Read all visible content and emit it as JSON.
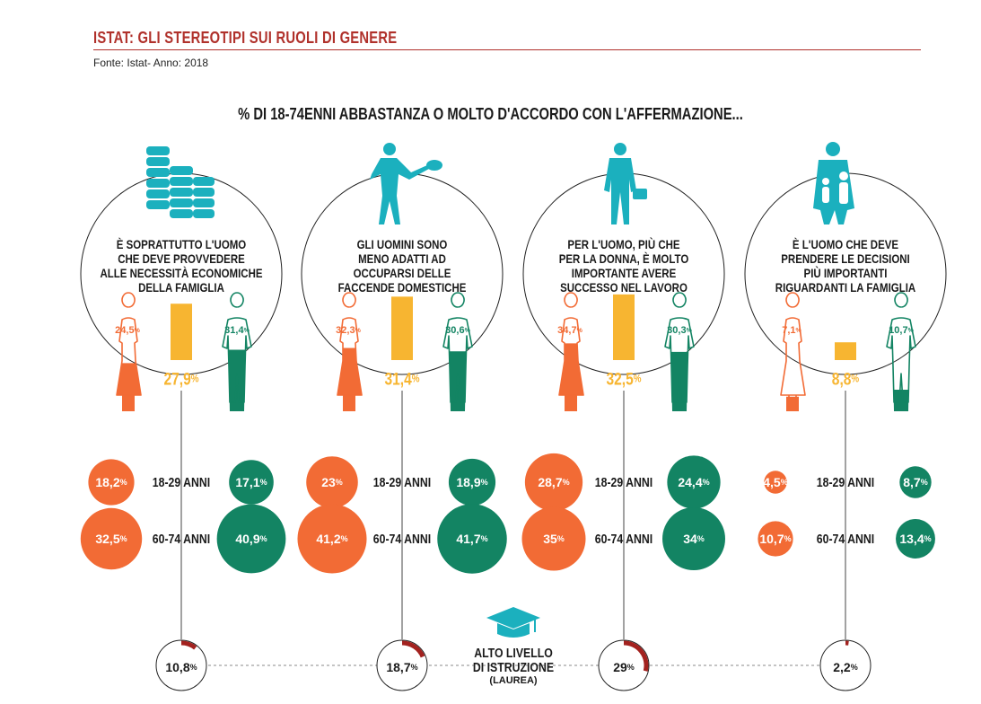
{
  "header": {
    "title": "ISTAT: GLI STEREOTIPI SUI RUOLI DI GENERE",
    "source": "Fonte: Istat- Anno: 2018",
    "subtitle": "% DI 18-74ENNI ABBASTANZA O MOLTO D'ACCORDO CON L'AFFERMAZIONE..."
  },
  "colors": {
    "women": "#f26b35",
    "men": "#138463",
    "total": "#f7b531",
    "icon": "#1bb0be",
    "degree_arc": "#a3221f",
    "accent": "#b0312b"
  },
  "chart_data": {
    "type": "bar",
    "categories": [
      "È SOPRATTUTTO L'UOMO CHE DEVE PROVVEDERE ALLE NECESSITÀ ECONOMICHE DELLA FAMIGLIA",
      "GLI UOMINI SONO MENO ADATTI AD OCCUPARSI DELLE FACCENDE DOMESTICHE",
      "PER L'UOMO, PIÙ CHE PER LA DONNA, È MOLTO IMPORTANTE AVERE SUCCESSO NEL LAVORO",
      "È L'UOMO CHE DEVE PRENDERE LE DECISIONI PIÙ IMPORTANTI RIGUARDANTI LA FAMIGLIA"
    ],
    "statements": [
      {
        "lines": [
          "È SOPRATTUTTO L'UOMO",
          "CHE DEVE PROVVEDERE",
          "ALLE NECESSITÀ ECONOMICHE",
          "DELLA FAMIGLIA"
        ],
        "icon": "coin-stacks-icon",
        "total": 27.9,
        "women": 24.5,
        "men": 31.4,
        "age_18_29": {
          "women": 18.2,
          "men": 17.1
        },
        "age_60_74": {
          "women": 32.5,
          "men": 40.9
        },
        "degree": 10.8
      },
      {
        "lines": [
          "GLI UOMINI SONO",
          "MENO ADATTI AD",
          "OCCUPARSI DELLE",
          "FACCENDE DOMESTICHE"
        ],
        "icon": "man-with-frying-pan-icon",
        "total": 31.4,
        "women": 32.3,
        "men": 30.6,
        "age_18_29": {
          "women": 23,
          "men": 18.9
        },
        "age_60_74": {
          "women": 41.2,
          "men": 41.7
        },
        "degree": 18.7
      },
      {
        "lines": [
          "PER L'UOMO, PIÙ CHE",
          "PER LA DONNA, È MOLTO",
          "IMPORTANTE AVERE",
          "SUCCESSO NEL LAVORO"
        ],
        "icon": "businessman-with-briefcase-icon",
        "total": 32.5,
        "women": 34.7,
        "men": 30.3,
        "age_18_29": {
          "women": 28.7,
          "men": 24.4
        },
        "age_60_74": {
          "women": 35,
          "men": 34
        },
        "degree": 29
      },
      {
        "lines": [
          "È L'UOMO CHE DEVE",
          "PRENDERE LE DECISIONI",
          "PIÙ IMPORTANTI",
          "RIGUARDANTI LA FAMIGLIA"
        ],
        "icon": "father-with-family-icon",
        "total": 8.8,
        "women": 7.1,
        "men": 10.7,
        "age_18_29": {
          "women": 4.5,
          "men": 8.7
        },
        "age_60_74": {
          "women": 10.7,
          "men": 13.4
        },
        "degree": 2.2
      }
    ],
    "age_labels": {
      "young": "18-29 ANNI",
      "old": "60-74 ANNI"
    },
    "degree_label": [
      "ALTO LIVELLO",
      "DI ISTRUZIONE"
    ],
    "degree_note": "(LAUREA)",
    "percent_sign": "%"
  }
}
